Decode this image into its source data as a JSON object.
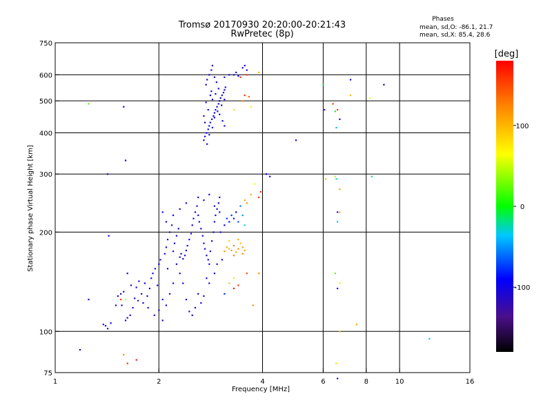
{
  "chart_data": {
    "type": "scatter",
    "title": "Tromsø 20170930 20:20:00-20:21:43",
    "subtitle": "RwPretec (8p)",
    "xlabel": "Frequency [MHz]",
    "ylabel": "Stationary phase Virtual Height [km]",
    "x_scale": "log",
    "y_scale": "log",
    "xlim": [
      1,
      16
    ],
    "ylim": [
      75,
      750
    ],
    "x_ticks": [
      1,
      2,
      4,
      6,
      8,
      10,
      16
    ],
    "x_tick_labels": [
      "1",
      "2",
      "4",
      "6",
      "8",
      "10",
      "16"
    ],
    "y_ticks": [
      75,
      100,
      200,
      300,
      400,
      500,
      600,
      750
    ],
    "y_tick_labels": [
      "75",
      "100",
      "200",
      "300",
      "400",
      "500",
      "600",
      "750"
    ],
    "x_gridlines": [
      2,
      4,
      6,
      8,
      10
    ],
    "y_gridlines": [
      100,
      200,
      300,
      400,
      500,
      600
    ],
    "legend": {
      "heading": "Phases",
      "line1": "mean, sd,O: -86.1, 21.7",
      "line2": "mean, sd,X:  85.4, 28.6"
    },
    "colorbar": {
      "label": "[deg]",
      "ticks": [
        100,
        0,
        -100
      ],
      "tick_labels": [
        "100",
        "0",
        "-100"
      ],
      "range": [
        -180,
        180
      ]
    },
    "points": [
      [
        1.18,
        88,
        -100
      ],
      [
        1.25,
        125,
        -100
      ],
      [
        1.25,
        490,
        20
      ],
      [
        1.38,
        105,
        -110
      ],
      [
        1.42,
        300,
        -100
      ],
      [
        1.43,
        195,
        -100
      ],
      [
        1.58,
        480,
        -100
      ],
      [
        1.6,
        330,
        -100
      ],
      [
        1.58,
        85,
        120
      ],
      [
        1.62,
        80,
        160
      ],
      [
        1.72,
        82,
        170
      ],
      [
        1.55,
        125,
        160
      ],
      [
        1.6,
        125,
        50
      ],
      [
        1.4,
        104,
        -100
      ],
      [
        1.42,
        102,
        -110
      ],
      [
        1.45,
        106,
        -100
      ],
      [
        1.5,
        120,
        -100
      ],
      [
        1.52,
        128,
        -100
      ],
      [
        1.55,
        130,
        -110
      ],
      [
        1.58,
        132,
        -100
      ],
      [
        1.6,
        108,
        -100
      ],
      [
        1.62,
        110,
        -100
      ],
      [
        1.65,
        112,
        -100
      ],
      [
        1.68,
        118,
        -100
      ],
      [
        1.7,
        126,
        -100
      ],
      [
        1.72,
        136,
        -100
      ],
      [
        1.75,
        142,
        -100
      ],
      [
        1.78,
        130,
        -110
      ],
      [
        1.8,
        122,
        -100
      ],
      [
        1.82,
        140,
        -100
      ],
      [
        1.85,
        128,
        -100
      ],
      [
        1.88,
        135,
        -100
      ],
      [
        1.9,
        145,
        -100
      ],
      [
        1.92,
        150,
        -100
      ],
      [
        1.95,
        155,
        -100
      ],
      [
        1.98,
        138,
        -100
      ],
      [
        2.0,
        160,
        -100
      ],
      [
        2.02,
        165,
        -100
      ],
      [
        1.62,
        150,
        -100
      ],
      [
        1.56,
        120,
        -100
      ],
      [
        1.66,
        138,
        -100
      ],
      [
        1.74,
        124,
        -120
      ],
      [
        1.86,
        118,
        -100
      ],
      [
        1.94,
        112,
        -100
      ],
      [
        2.0,
        116,
        -110
      ],
      [
        2.05,
        125,
        -100
      ],
      [
        2.08,
        172,
        -100
      ],
      [
        2.1,
        180,
        -100
      ],
      [
        2.12,
        190,
        -100
      ],
      [
        2.15,
        200,
        -100
      ],
      [
        2.18,
        210,
        -100
      ],
      [
        2.2,
        175,
        -100
      ],
      [
        2.22,
        185,
        -100
      ],
      [
        2.25,
        195,
        -100
      ],
      [
        2.28,
        205,
        -100
      ],
      [
        2.3,
        168,
        -100
      ],
      [
        2.32,
        172,
        -100
      ],
      [
        2.35,
        166,
        -100
      ],
      [
        2.38,
        170,
        -100
      ],
      [
        2.4,
        176,
        -100
      ],
      [
        2.42,
        182,
        -100
      ],
      [
        2.45,
        190,
        -100
      ],
      [
        2.48,
        198,
        -100
      ],
      [
        2.5,
        210,
        -100
      ],
      [
        2.52,
        220,
        -100
      ],
      [
        2.55,
        230,
        -100
      ],
      [
        2.58,
        240,
        -100
      ],
      [
        2.6,
        225,
        -100
      ],
      [
        2.62,
        215,
        -100
      ],
      [
        2.65,
        205,
        -100
      ],
      [
        2.68,
        195,
        -100
      ],
      [
        2.7,
        185,
        -100
      ],
      [
        2.72,
        178,
        -100
      ],
      [
        2.75,
        170,
        -100
      ],
      [
        2.78,
        165,
        -100
      ],
      [
        2.8,
        160,
        -100
      ],
      [
        2.82,
        175,
        -100
      ],
      [
        2.85,
        188,
        -100
      ],
      [
        2.88,
        200,
        -100
      ],
      [
        2.9,
        215,
        -100
      ],
      [
        2.92,
        225,
        -100
      ],
      [
        2.95,
        235,
        -100
      ],
      [
        2.98,
        245,
        -100
      ],
      [
        3.0,
        230,
        -100
      ],
      [
        3.02,
        200,
        -100
      ],
      [
        2.3,
        150,
        -100
      ],
      [
        2.35,
        140,
        -100
      ],
      [
        2.4,
        125,
        -100
      ],
      [
        2.45,
        115,
        -100
      ],
      [
        2.5,
        112,
        -100
      ],
      [
        2.55,
        118,
        -100
      ],
      [
        2.6,
        130,
        -100
      ],
      [
        2.65,
        122,
        -100
      ],
      [
        2.7,
        128,
        -100
      ],
      [
        2.75,
        145,
        -100
      ],
      [
        2.8,
        140,
        -100
      ],
      [
        2.9,
        150,
        -100
      ],
      [
        2.2,
        140,
        -100
      ],
      [
        2.15,
        130,
        -100
      ],
      [
        2.1,
        120,
        -100
      ],
      [
        2.05,
        108,
        -100
      ],
      [
        2.12,
        155,
        -100
      ],
      [
        2.25,
        160,
        -100
      ],
      [
        2.6,
        255,
        -100
      ],
      [
        2.7,
        250,
        -100
      ],
      [
        2.8,
        260,
        -100
      ],
      [
        2.9,
        240,
        -100
      ],
      [
        3.0,
        255,
        -100
      ],
      [
        2.95,
        160,
        -100
      ],
      [
        3.05,
        165,
        -100
      ],
      [
        2.1,
        215,
        -100
      ],
      [
        2.2,
        225,
        -100
      ],
      [
        2.05,
        230,
        -100
      ],
      [
        2.3,
        235,
        -100
      ],
      [
        2.4,
        245,
        -100
      ],
      [
        3.1,
        210,
        -90
      ],
      [
        3.15,
        220,
        -80
      ],
      [
        3.2,
        215,
        -90
      ],
      [
        3.25,
        225,
        -80
      ],
      [
        3.3,
        220,
        -85
      ],
      [
        3.35,
        230,
        -90
      ],
      [
        3.4,
        215,
        -70
      ],
      [
        3.45,
        240,
        -60
      ],
      [
        3.5,
        225,
        -50
      ],
      [
        3.55,
        210,
        -30
      ],
      [
        3.6,
        245,
        120
      ],
      [
        3.55,
        250,
        110
      ],
      [
        3.1,
        130,
        -80
      ],
      [
        3.2,
        140,
        -90
      ],
      [
        3.1,
        175,
        120
      ],
      [
        3.15,
        180,
        110
      ],
      [
        3.2,
        178,
        100
      ],
      [
        3.25,
        176,
        115
      ],
      [
        3.3,
        182,
        125
      ],
      [
        3.35,
        174,
        105
      ],
      [
        3.4,
        178,
        120
      ],
      [
        3.45,
        185,
        100
      ],
      [
        3.5,
        180,
        115
      ],
      [
        3.55,
        176,
        110
      ],
      [
        3.2,
        188,
        90
      ],
      [
        3.3,
        170,
        130
      ],
      [
        3.4,
        190,
        110
      ],
      [
        3.5,
        172,
        125
      ],
      [
        3.2,
        140,
        60
      ],
      [
        3.3,
        145,
        50
      ],
      [
        3.4,
        138,
        160
      ],
      [
        3.3,
        135,
        170
      ],
      [
        3.6,
        150,
        150
      ],
      [
        3.8,
        280,
        60
      ],
      [
        3.7,
        260,
        110
      ],
      [
        3.9,
        255,
        160
      ],
      [
        3.95,
        265,
        160
      ],
      [
        3.75,
        120,
        120
      ],
      [
        3.9,
        150,
        120
      ],
      [
        4.1,
        300,
        -100
      ],
      [
        4.2,
        295,
        -100
      ],
      [
        5.0,
        380,
        -100
      ],
      [
        2.7,
        380,
        -100
      ],
      [
        2.72,
        390,
        -100
      ],
      [
        2.75,
        400,
        -100
      ],
      [
        2.78,
        410,
        -100
      ],
      [
        2.8,
        420,
        -100
      ],
      [
        2.82,
        430,
        -100
      ],
      [
        2.85,
        440,
        -100
      ],
      [
        2.88,
        450,
        -100
      ],
      [
        2.9,
        460,
        -100
      ],
      [
        2.92,
        470,
        -100
      ],
      [
        2.95,
        480,
        -100
      ],
      [
        2.98,
        490,
        -100
      ],
      [
        3.0,
        500,
        -100
      ],
      [
        3.02,
        510,
        -100
      ],
      [
        3.05,
        520,
        -100
      ],
      [
        3.08,
        530,
        -100
      ],
      [
        3.1,
        540,
        -100
      ],
      [
        3.12,
        550,
        -100
      ],
      [
        2.74,
        560,
        -100
      ],
      [
        2.76,
        580,
        -100
      ],
      [
        2.8,
        600,
        -100
      ],
      [
        2.84,
        620,
        -100
      ],
      [
        2.86,
        640,
        -100
      ],
      [
        2.9,
        590,
        -100
      ],
      [
        2.94,
        570,
        -100
      ],
      [
        2.98,
        545,
        -100
      ],
      [
        2.72,
        430,
        -100
      ],
      [
        2.76,
        370,
        -100
      ],
      [
        2.8,
        395,
        -100
      ],
      [
        2.86,
        415,
        -100
      ],
      [
        2.9,
        445,
        -100
      ],
      [
        2.96,
        465,
        -100
      ],
      [
        3.04,
        485,
        -100
      ],
      [
        3.1,
        505,
        -100
      ],
      [
        2.78,
        470,
        -100
      ],
      [
        2.82,
        520,
        -100
      ],
      [
        2.86,
        505,
        -100
      ],
      [
        2.92,
        525,
        -100
      ],
      [
        3.0,
        455,
        -100
      ],
      [
        3.06,
        435,
        -100
      ],
      [
        3.1,
        420,
        -100
      ],
      [
        2.7,
        450,
        -100
      ],
      [
        2.74,
        495,
        -100
      ],
      [
        2.84,
        535,
        -100
      ],
      [
        3.3,
        600,
        -100
      ],
      [
        3.35,
        610,
        -100
      ],
      [
        3.4,
        595,
        -100
      ],
      [
        3.5,
        630,
        -100
      ],
      [
        3.55,
        640,
        -100
      ],
      [
        3.6,
        620,
        -100
      ],
      [
        3.45,
        590,
        160
      ],
      [
        3.6,
        600,
        160
      ],
      [
        3.55,
        520,
        160
      ],
      [
        3.65,
        515,
        140
      ],
      [
        3.7,
        480,
        80
      ],
      [
        3.3,
        470,
        80
      ],
      [
        3.5,
        500,
        120
      ],
      [
        3.9,
        610,
        100
      ],
      [
        3.1,
        590,
        -100
      ],
      [
        3.2,
        600,
        -100
      ],
      [
        6.0,
        560,
        -10
      ],
      [
        6.05,
        470,
        -130
      ],
      [
        6.4,
        490,
        160
      ],
      [
        6.5,
        465,
        -10
      ],
      [
        6.6,
        470,
        160
      ],
      [
        6.55,
        415,
        -40
      ],
      [
        6.7,
        440,
        -100
      ],
      [
        6.1,
        290,
        100
      ],
      [
        6.5,
        295,
        50
      ],
      [
        6.55,
        290,
        -20
      ],
      [
        6.7,
        270,
        110
      ],
      [
        6.6,
        230,
        -100
      ],
      [
        6.7,
        230,
        100
      ],
      [
        6.6,
        215,
        -40
      ],
      [
        6.5,
        150,
        20
      ],
      [
        6.6,
        135,
        -100
      ],
      [
        6.7,
        140,
        60
      ],
      [
        6.55,
        80,
        80
      ],
      [
        6.6,
        72,
        -100
      ],
      [
        6.7,
        100,
        100
      ],
      [
        7.2,
        580,
        -100
      ],
      [
        7.2,
        520,
        100
      ],
      [
        7.5,
        105,
        110
      ],
      [
        8.2,
        510,
        60
      ],
      [
        8.3,
        295,
        -20
      ],
      [
        9.0,
        560,
        -100
      ],
      [
        12.2,
        95,
        -30
      ]
    ]
  }
}
